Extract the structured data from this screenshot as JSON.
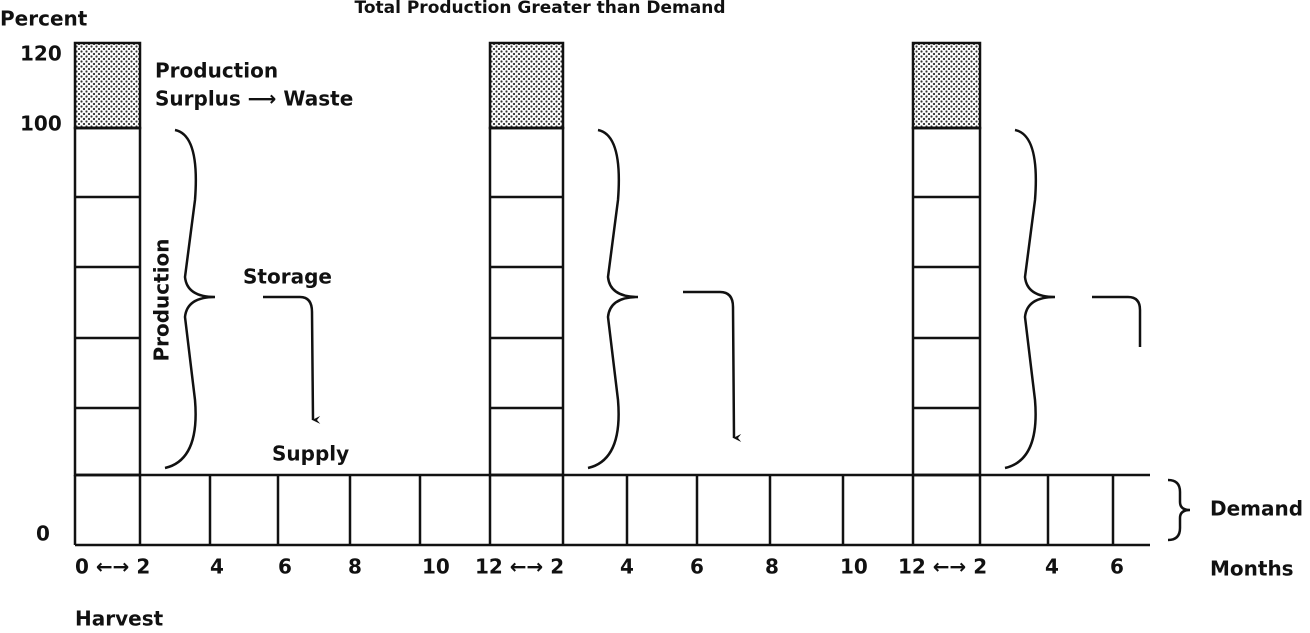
{
  "title": "Total Production Greater than Demand",
  "y_axis": {
    "label": "Percent",
    "ticks": [
      "120",
      "100",
      "0"
    ]
  },
  "x_axis": {
    "label": "Months",
    "ticks": [
      "0 ←→ 2",
      "4",
      "6",
      "8",
      "10",
      "12 ←→ 2",
      "4",
      "6",
      "8",
      "10",
      "12 ←→ 2",
      "4",
      "6"
    ]
  },
  "harvest_label": "Harvest",
  "annotations": {
    "surplus_line1": "Production",
    "surplus_line2": "Surplus ⟶ Waste",
    "production": "Production",
    "storage": "Storage",
    "supply": "Supply",
    "demand": "Demand"
  }
}
